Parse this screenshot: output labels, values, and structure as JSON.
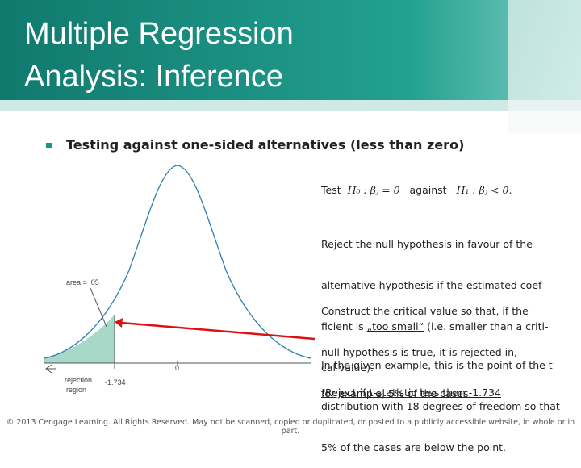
{
  "header": {
    "title_lines": [
      "Multiple Regression",
      "Analysis: Inference"
    ]
  },
  "bullet": "Testing against one-sided alternatives (less than zero)",
  "figure": {
    "area_label": "area = .05",
    "zero_label": "0",
    "critical_label": "-1.734",
    "region_lines": [
      "rejection",
      "region"
    ]
  },
  "test_line": {
    "word": "Test",
    "h0": "H₀ : βⱼ = 0",
    "against": "against",
    "h1": "H₁ : βⱼ < 0."
  },
  "paragraphs": [
    [
      [
        "Reject the null hypothesis in favour of the"
      ],
      [
        "alternative hypothesis if the estimated coef-"
      ],
      [
        "ficient is ",
        "„too small“",
        " (i.e. smaller than a criti-"
      ],
      [
        "cal value)."
      ]
    ],
    [
      [
        "Construct the critical value so that, if the"
      ],
      [
        "null hypothesis is true, it is rejected in,"
      ],
      [
        "for example, 5% of the cases."
      ]
    ],
    [
      [
        "In the given example, this is the point of the t-"
      ],
      [
        "distribution with 18 degrees of freedom so that"
      ],
      [
        "5% of the cases are below the point."
      ]
    ]
  ],
  "conclusion": "!Reject if t-statistic less than -1.734",
  "footer": "© 2013 Cengage Learning. All Rights Reserved. May not be scanned, copied or duplicated, or posted to a publicly accessible website, in whole or in part."
}
